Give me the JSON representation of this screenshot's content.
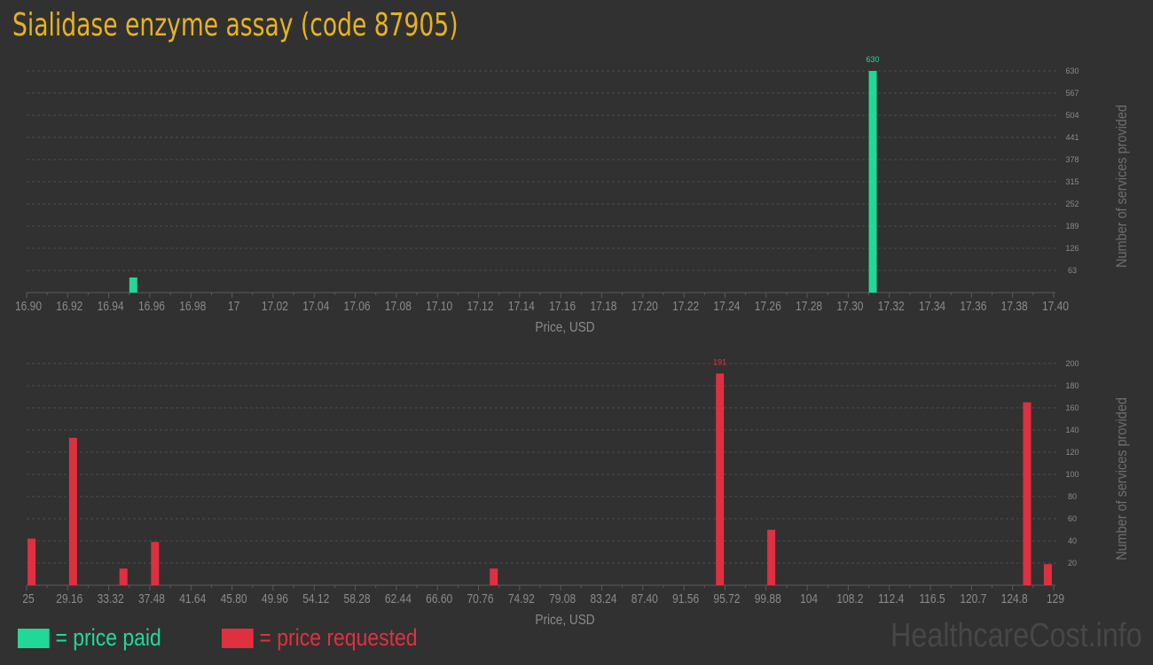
{
  "title": "Sialidase enzyme assay (code 87905)",
  "legend": {
    "paid": "= price paid",
    "requested": "= price requested"
  },
  "watermark": "HealthcareCost.info",
  "colors": {
    "paid": "#20d996",
    "requested": "#e03040",
    "title": "#e6b31e"
  },
  "chart_data": [
    {
      "type": "bar",
      "xlabel": "Price, USD",
      "ylabel": "Number of services provided",
      "xlim": [
        16.9,
        17.4
      ],
      "ylim": [
        0,
        630
      ],
      "x_ticks": [
        "16.90",
        "16.92",
        "16.94",
        "16.96",
        "16.98",
        "17",
        "17.02",
        "17.04",
        "17.06",
        "17.08",
        "17.10",
        "17.12",
        "17.14",
        "17.16",
        "17.18",
        "17.20",
        "17.22",
        "17.24",
        "17.26",
        "17.28",
        "17.30",
        "17.32",
        "17.34",
        "17.36",
        "17.38",
        "17.40"
      ],
      "y_ticks": [
        63,
        126,
        189,
        252,
        315,
        378,
        441,
        504,
        567,
        630
      ],
      "grid": true,
      "series": [
        {
          "name": "price paid",
          "color": "#20d996",
          "x": [
            16.95,
            17.31
          ],
          "values": [
            43,
            630
          ],
          "labels": [
            "",
            "630"
          ]
        }
      ]
    },
    {
      "type": "bar",
      "xlabel": "Price, USD",
      "ylabel": "Number of services provided",
      "xlim": [
        25,
        129
      ],
      "ylim": [
        0,
        200
      ],
      "x_ticks": [
        "25",
        "29.16",
        "33.32",
        "37.48",
        "41.64",
        "45.80",
        "49.96",
        "54.12",
        "58.28",
        "62.44",
        "66.60",
        "70.76",
        "74.92",
        "79.08",
        "83.24",
        "87.40",
        "91.56",
        "95.72",
        "99.88",
        "104",
        "108.2",
        "112.4",
        "116.5",
        "120.7",
        "124.8",
        "129"
      ],
      "y_ticks": [
        20,
        40,
        60,
        80,
        100,
        120,
        140,
        160,
        180,
        200
      ],
      "grid": true,
      "series": [
        {
          "name": "price requested",
          "color": "#e03040",
          "x": [
            25.1,
            29.3,
            34.4,
            37.6,
            71.9,
            94.8,
            100,
            125.9,
            128
          ],
          "values": [
            42,
            133,
            15,
            39,
            15,
            191,
            50,
            165,
            19
          ],
          "labels": [
            "",
            "",
            "",
            "",
            "",
            "191",
            "",
            "",
            ""
          ]
        }
      ]
    }
  ]
}
